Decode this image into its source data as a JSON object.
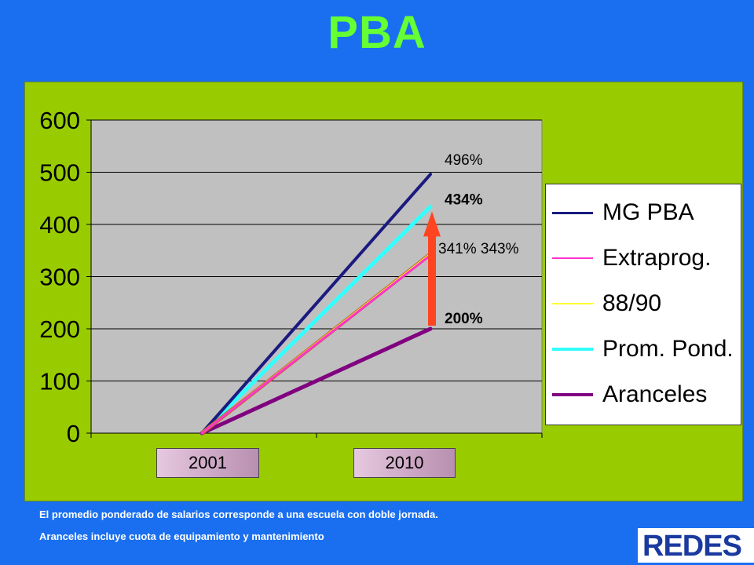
{
  "title": "PBA",
  "colors": {
    "background": "#1a6ff0",
    "title": "#66ff33",
    "panel": "#99cc00",
    "plot_area": "#c0c0c0",
    "arrow": "#ff4422"
  },
  "chart_data": {
    "type": "line",
    "categories": [
      "2001",
      "2010"
    ],
    "ylim": [
      0,
      600
    ],
    "yticks": [
      "0",
      "100",
      "200",
      "300",
      "400",
      "500",
      "600"
    ],
    "grid": true,
    "legend_position": "right",
    "series": [
      {
        "name": "MG PBA",
        "values": [
          0,
          496
        ],
        "color": "#1a1a80",
        "width": 4
      },
      {
        "name": "Extraprog.",
        "values": [
          0,
          341
        ],
        "color": "#ff33cc",
        "width": 3
      },
      {
        "name": "88/90",
        "values": [
          0,
          343
        ],
        "color": "#ffff33",
        "width": 3
      },
      {
        "name": "Prom. Pond.",
        "values": [
          0,
          434
        ],
        "color": "#33ffff",
        "width": 5
      },
      {
        "name": "Aranceles",
        "values": [
          0,
          200
        ],
        "color": "#800080",
        "width": 5
      }
    ],
    "annotations": [
      {
        "text": "496%",
        "bold": false
      },
      {
        "text": "434%",
        "bold": true
      },
      {
        "text": "341% 343%",
        "bold": false
      },
      {
        "text": "200%",
        "bold": true
      }
    ],
    "arrow": {
      "from": 200,
      "to": 434
    }
  },
  "notes": [
    "El promedio ponderado de salarios corresponde a una escuela con doble jornada.",
    "Aranceles incluye cuota de equipamiento y mantenimiento"
  ],
  "logo": {
    "text": "REDES"
  }
}
